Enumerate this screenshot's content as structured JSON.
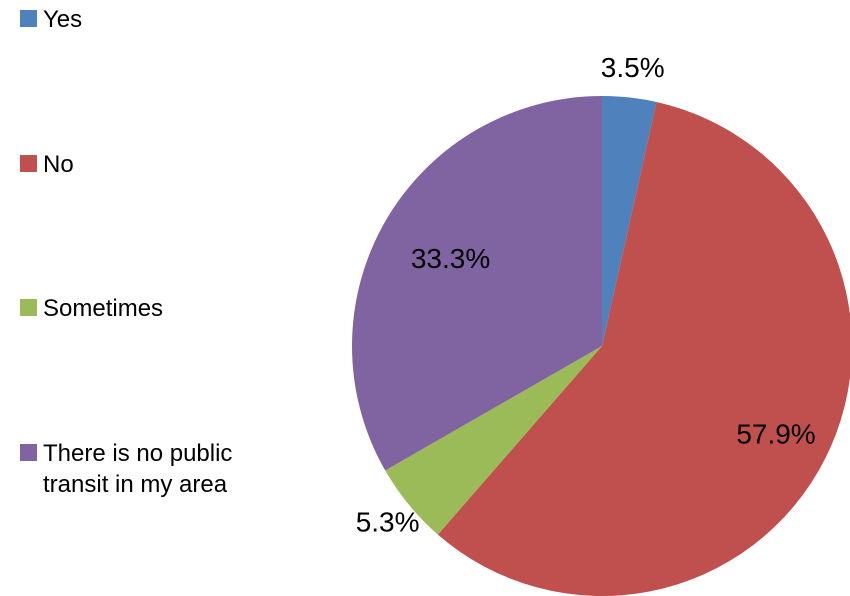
{
  "chart_data": {
    "type": "pie",
    "title": "",
    "categories": [
      "Yes",
      "No",
      "Sometimes",
      "There is no public transit in my area"
    ],
    "values": [
      3.5,
      57.9,
      5.3,
      33.3
    ],
    "value_labels": [
      "3.5%",
      "57.9%",
      "5.3%",
      "33.3%"
    ],
    "unit": "%",
    "colors": [
      "#4F81BD",
      "#C0504D",
      "#9BBB59",
      "#8064A2"
    ],
    "legend_position": "left",
    "start_angle": "12 o'clock",
    "direction": "clockwise"
  }
}
